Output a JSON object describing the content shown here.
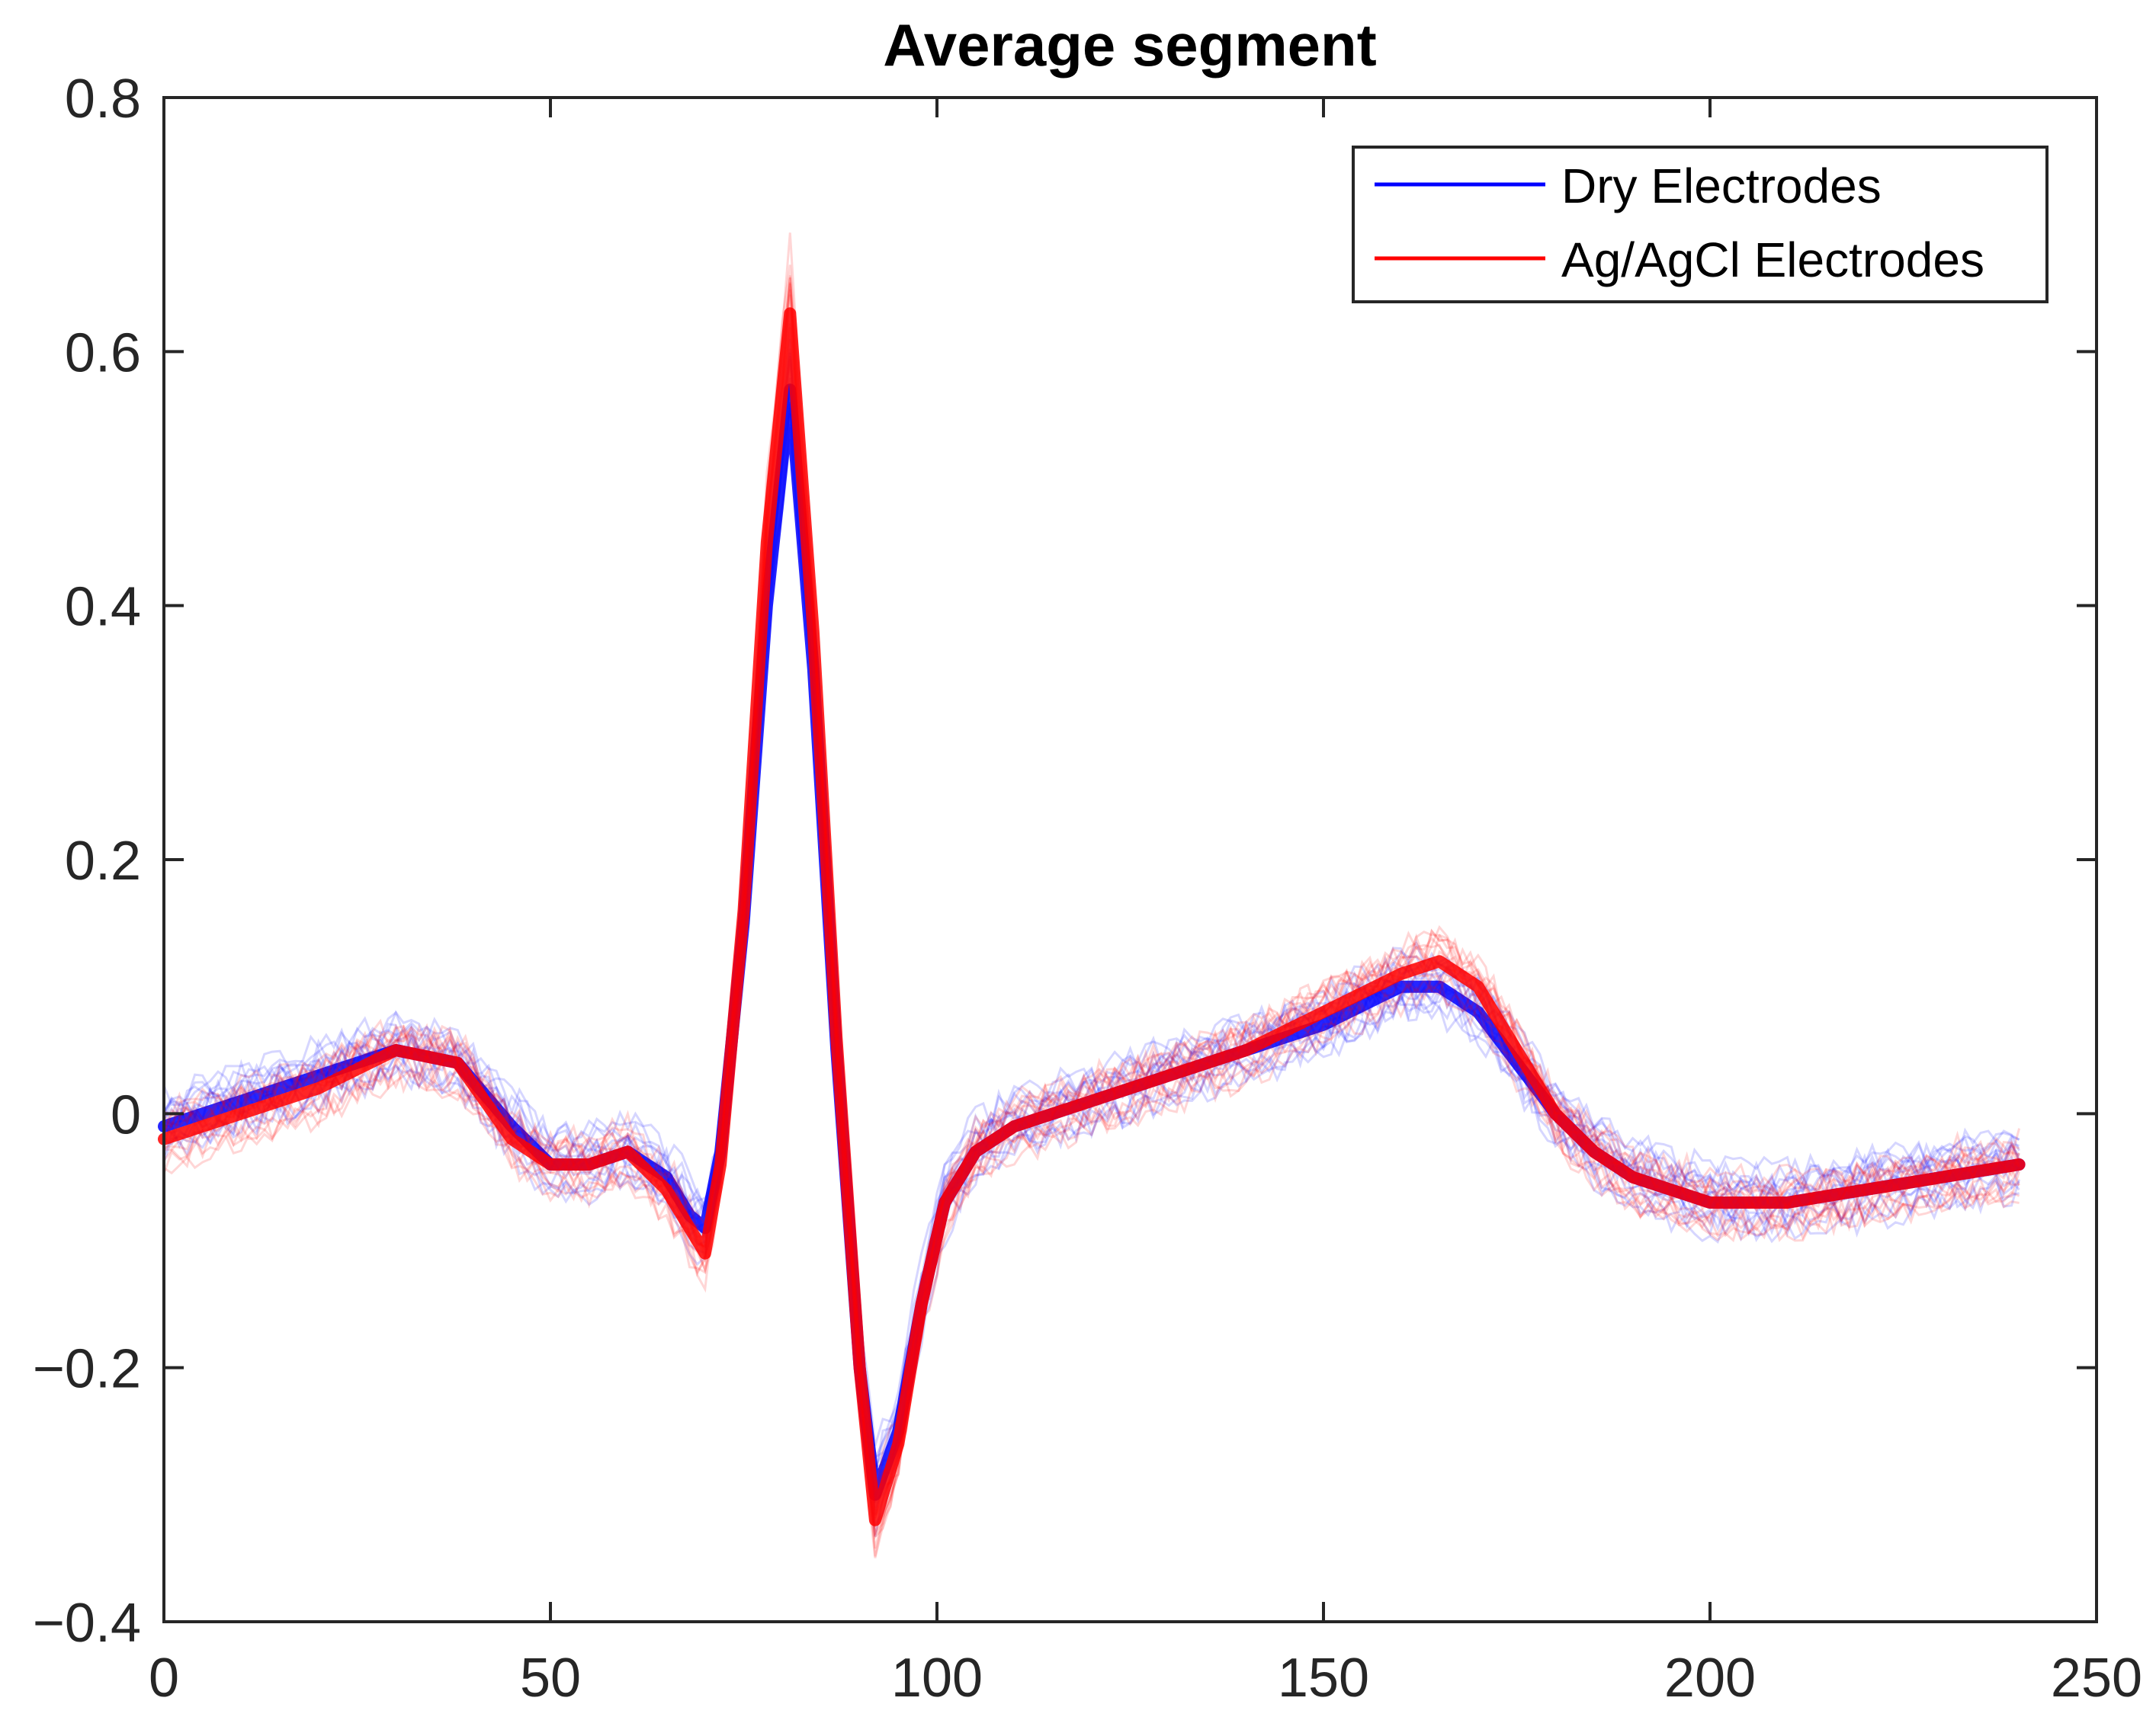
{
  "chart_data": {
    "type": "line",
    "title": "Average segment",
    "xlabel": "",
    "ylabel": "",
    "xlim": [
      0,
      250
    ],
    "ylim": [
      -0.4,
      0.8
    ],
    "xticks": [
      0,
      50,
      100,
      150,
      200,
      250
    ],
    "yticks": [
      -0.4,
      -0.2,
      0,
      0.2,
      0.4,
      0.6,
      0.8
    ],
    "xtick_labels": [
      "0",
      "50",
      "100",
      "150",
      "200",
      "250"
    ],
    "ytick_labels": [
      "−0.4",
      "−0.2",
      "0",
      "0.2",
      "0.4",
      "0.6",
      "0.8"
    ],
    "grid": false,
    "legend_position": "top-right",
    "series": [
      {
        "name": "Dry Electrodes",
        "color": "#0000ff",
        "x": [
          0,
          10,
          20,
          30,
          38,
          45,
          50,
          55,
          60,
          65,
          68,
          70,
          72,
          75,
          78,
          81,
          84,
          87,
          90,
          92,
          95,
          98,
          101,
          105,
          110,
          120,
          130,
          140,
          150,
          160,
          165,
          170,
          175,
          180,
          185,
          190,
          195,
          200,
          210,
          220,
          230,
          240
        ],
        "values": [
          -0.01,
          0.01,
          0.03,
          0.05,
          0.04,
          -0.01,
          -0.04,
          -0.04,
          -0.03,
          -0.05,
          -0.08,
          -0.09,
          -0.03,
          0.15,
          0.4,
          0.57,
          0.35,
          0.05,
          -0.2,
          -0.3,
          -0.25,
          -0.15,
          -0.07,
          -0.03,
          -0.01,
          0.01,
          0.03,
          0.05,
          0.07,
          0.1,
          0.1,
          0.08,
          0.04,
          0.0,
          -0.03,
          -0.05,
          -0.06,
          -0.07,
          -0.07,
          -0.06,
          -0.05,
          -0.04
        ]
      },
      {
        "name": "Ag/AgCl Electrodes",
        "color": "#ff0000",
        "x": [
          0,
          10,
          20,
          30,
          38,
          45,
          50,
          55,
          60,
          65,
          68,
          70,
          72,
          75,
          78,
          81,
          84,
          87,
          90,
          92,
          95,
          98,
          101,
          105,
          110,
          120,
          130,
          140,
          150,
          160,
          165,
          170,
          175,
          180,
          185,
          190,
          195,
          200,
          210,
          220,
          230,
          240
        ],
        "values": [
          -0.02,
          0.0,
          0.02,
          0.05,
          0.04,
          -0.02,
          -0.04,
          -0.04,
          -0.03,
          -0.06,
          -0.09,
          -0.11,
          -0.04,
          0.16,
          0.45,
          0.63,
          0.38,
          0.06,
          -0.2,
          -0.32,
          -0.26,
          -0.15,
          -0.07,
          -0.03,
          -0.01,
          0.01,
          0.03,
          0.05,
          0.08,
          0.11,
          0.12,
          0.1,
          0.05,
          0.0,
          -0.03,
          -0.05,
          -0.06,
          -0.07,
          -0.07,
          -0.06,
          -0.05,
          -0.04
        ]
      }
    ]
  }
}
